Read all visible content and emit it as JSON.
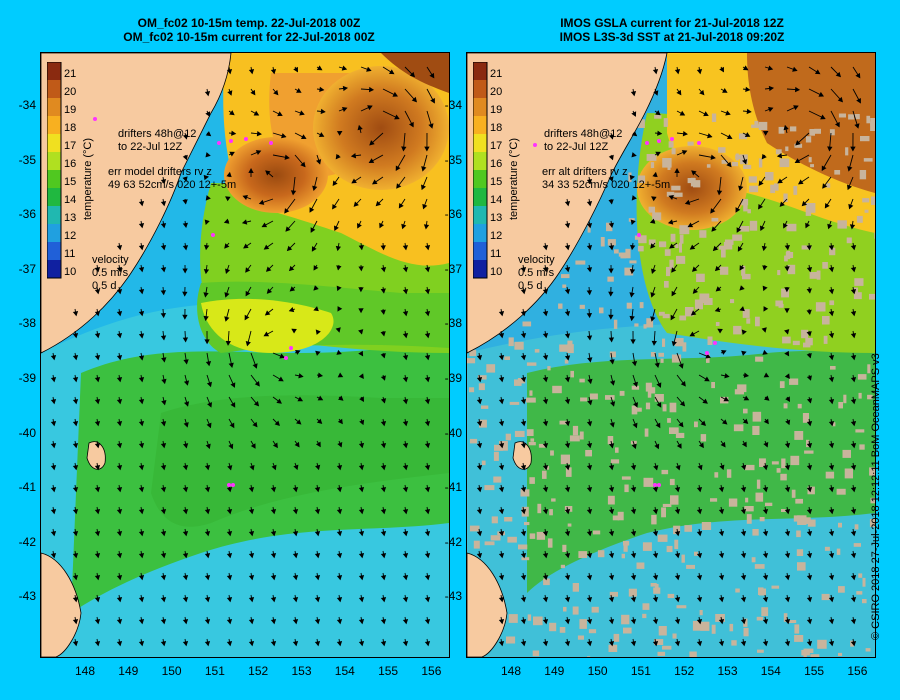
{
  "panels": [
    {
      "title_line1": "OM_fc02 10-15m temp. 22-Jul-2018 00Z",
      "title_line2": "OM_fc02 10-15m current for 22-Jul-2018 00Z",
      "drifters_line1": "drifters 48h@12",
      "drifters_line2": "to 22-Jul 12Z",
      "err_line1": "err model drifters rv z",
      "err_line2": "49 63 52cm/s 020 12+-5m",
      "colorbar_title": "temperature (°C)",
      "velocity_label": "velocity",
      "velocity_scale": "0.5 m/s",
      "velocity_time": "0.5 d"
    },
    {
      "title_line1": "IMOS GSLA current for 21-Jul-2018 12Z",
      "title_line2": "IMOS L3S-3d SST at 21-Jul-2018 09:20Z",
      "drifters_line1": "drifters 48h@12",
      "drifters_line2": "to 22-Jul 12Z",
      "err_line1": "err alt drifters rv z",
      "err_line2": "34 33 52cm/s 020 12+-5m",
      "colorbar_title": "temperature (°C)",
      "velocity_label": "velocity",
      "velocity_scale": "0.5 m/s",
      "velocity_time": "0.5 d"
    }
  ],
  "colorbar_ticks": [
    "21",
    "20",
    "19",
    "18",
    "17",
    "16",
    "15",
    "14",
    "13",
    "12",
    "11",
    "10"
  ],
  "lat_ticks": [
    "-34",
    "-35",
    "-36",
    "-37",
    "-38",
    "-39",
    "-40",
    "-41",
    "-42",
    "-43"
  ],
  "lon_ticks": [
    "148",
    "149",
    "150",
    "151",
    "152",
    "153",
    "154",
    "155",
    "156"
  ],
  "credit": "© CSIRO 2018   27-Jul-2018 12:12:11 BoM OceanMAPS v3",
  "colors": {
    "background": "#00ccff",
    "land": "#f7caa0",
    "drifter": "#ff33ff",
    "cloud": "#c8b49c"
  }
}
